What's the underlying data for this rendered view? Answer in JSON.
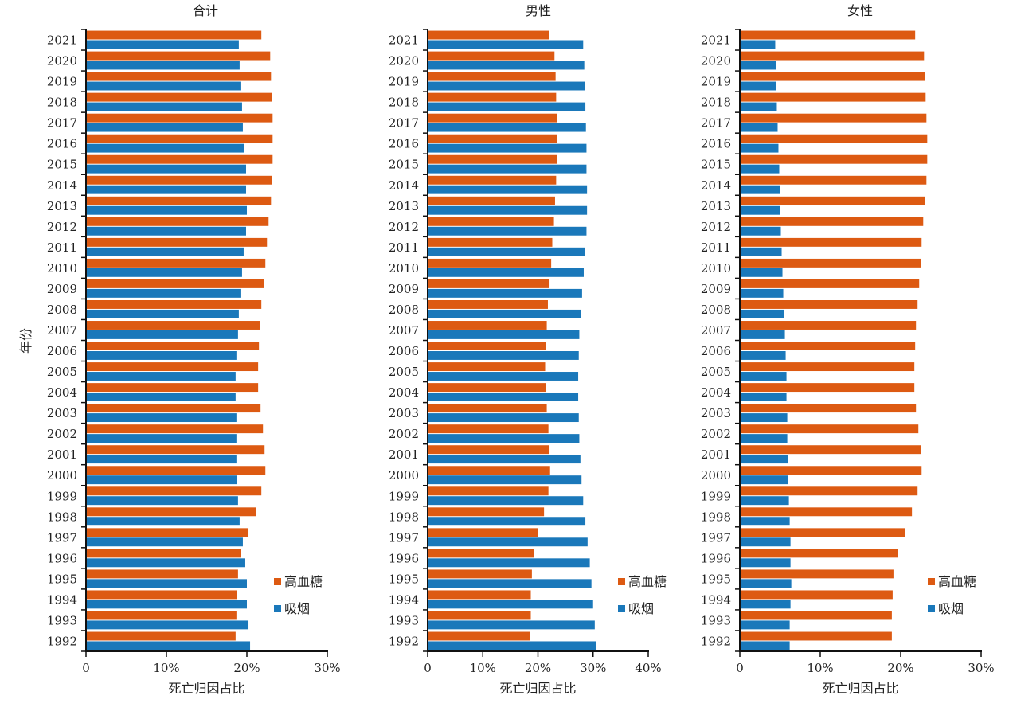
{
  "colors": {
    "high_blood_sugar": "#dd5a12",
    "smoking": "#1a78ba",
    "axis": "#111111"
  },
  "y_axis_label": "年份",
  "legend": [
    "高血糖",
    "吸烟"
  ],
  "chart_data": [
    {
      "type": "bar",
      "orientation": "horizontal",
      "title": "合计",
      "xlabel": "死亡归因占比",
      "ylabel": "年份",
      "xlim": [
        0,
        30
      ],
      "xticks": [
        0,
        10,
        20,
        30
      ],
      "xtick_labels": [
        "0",
        "10%",
        "20%",
        "30%"
      ],
      "legend": "bottom-right",
      "grid": false,
      "categories": [
        "2021",
        "2020",
        "2019",
        "2018",
        "2017",
        "2016",
        "2015",
        "2014",
        "2013",
        "2012",
        "2011",
        "2010",
        "2009",
        "2008",
        "2007",
        "2006",
        "2005",
        "2004",
        "2003",
        "2002",
        "2001",
        "2000",
        "1999",
        "1998",
        "1997",
        "1996",
        "1995",
        "1994",
        "1993",
        "1992"
      ],
      "series": [
        {
          "name": "高血糖",
          "values": [
            21.8,
            22.9,
            23.0,
            23.1,
            23.2,
            23.2,
            23.2,
            23.1,
            23.0,
            22.7,
            22.5,
            22.3,
            22.1,
            21.8,
            21.6,
            21.5,
            21.4,
            21.4,
            21.7,
            22.0,
            22.2,
            22.3,
            21.8,
            21.1,
            20.2,
            19.3,
            18.9,
            18.8,
            18.7,
            18.6
          ]
        },
        {
          "name": "吸烟",
          "values": [
            19.0,
            19.1,
            19.2,
            19.4,
            19.5,
            19.7,
            19.9,
            19.9,
            20.0,
            19.9,
            19.6,
            19.4,
            19.2,
            19.0,
            18.9,
            18.7,
            18.6,
            18.6,
            18.7,
            18.7,
            18.7,
            18.8,
            18.9,
            19.1,
            19.5,
            19.8,
            20.0,
            20.0,
            20.2,
            20.4
          ]
        }
      ]
    },
    {
      "type": "bar",
      "orientation": "horizontal",
      "title": "男性",
      "xlabel": "死亡归因占比",
      "xlim": [
        0,
        40
      ],
      "xticks": [
        0,
        10,
        20,
        30,
        40
      ],
      "xtick_labels": [
        "0",
        "10%",
        "20%",
        "30%",
        "40%"
      ],
      "legend": "bottom-right",
      "grid": false,
      "categories": [
        "2021",
        "2020",
        "2019",
        "2018",
        "2017",
        "2016",
        "2015",
        "2014",
        "2013",
        "2012",
        "2011",
        "2010",
        "2009",
        "2008",
        "2007",
        "2006",
        "2005",
        "2004",
        "2003",
        "2002",
        "2001",
        "2000",
        "1999",
        "1998",
        "1997",
        "1996",
        "1995",
        "1994",
        "1993",
        "1992"
      ],
      "series": [
        {
          "name": "高血糖",
          "values": [
            22.0,
            23.0,
            23.2,
            23.3,
            23.4,
            23.4,
            23.4,
            23.3,
            23.1,
            22.9,
            22.6,
            22.4,
            22.1,
            21.8,
            21.6,
            21.4,
            21.3,
            21.4,
            21.6,
            21.9,
            22.1,
            22.2,
            21.9,
            21.1,
            20.0,
            19.3,
            18.9,
            18.7,
            18.7,
            18.6
          ]
        },
        {
          "name": "吸烟",
          "values": [
            28.2,
            28.4,
            28.5,
            28.6,
            28.7,
            28.8,
            28.8,
            28.9,
            28.9,
            28.8,
            28.5,
            28.3,
            28.0,
            27.8,
            27.5,
            27.4,
            27.3,
            27.3,
            27.4,
            27.5,
            27.7,
            27.9,
            28.2,
            28.6,
            29.0,
            29.4,
            29.7,
            30.0,
            30.3,
            30.5
          ]
        }
      ]
    },
    {
      "type": "bar",
      "orientation": "horizontal",
      "title": "女性",
      "xlabel": "死亡归因占比",
      "xlim": [
        0,
        30
      ],
      "xticks": [
        0,
        10,
        20,
        30
      ],
      "xtick_labels": [
        "0",
        "10%",
        "20%",
        "30%"
      ],
      "legend": "bottom-right",
      "grid": false,
      "categories": [
        "2021",
        "2020",
        "2019",
        "2018",
        "2017",
        "2016",
        "2015",
        "2014",
        "2013",
        "2012",
        "2011",
        "2010",
        "2009",
        "2008",
        "2007",
        "2006",
        "2005",
        "2004",
        "2003",
        "2002",
        "2001",
        "2000",
        "1999",
        "1998",
        "1997",
        "1996",
        "1995",
        "1994",
        "1993",
        "1992"
      ],
      "series": [
        {
          "name": "高血糖",
          "values": [
            21.8,
            22.9,
            23.0,
            23.1,
            23.2,
            23.3,
            23.3,
            23.2,
            23.0,
            22.8,
            22.6,
            22.5,
            22.3,
            22.1,
            21.9,
            21.8,
            21.7,
            21.7,
            21.9,
            22.2,
            22.5,
            22.6,
            22.1,
            21.4,
            20.5,
            19.7,
            19.1,
            19.0,
            18.9,
            18.9
          ]
        },
        {
          "name": "吸烟",
          "values": [
            4.4,
            4.5,
            4.5,
            4.6,
            4.7,
            4.8,
            4.9,
            5.0,
            5.0,
            5.1,
            5.2,
            5.3,
            5.4,
            5.5,
            5.6,
            5.7,
            5.8,
            5.8,
            5.9,
            5.9,
            6.0,
            6.0,
            6.1,
            6.2,
            6.3,
            6.3,
            6.4,
            6.3,
            6.2,
            6.2
          ]
        }
      ]
    }
  ]
}
